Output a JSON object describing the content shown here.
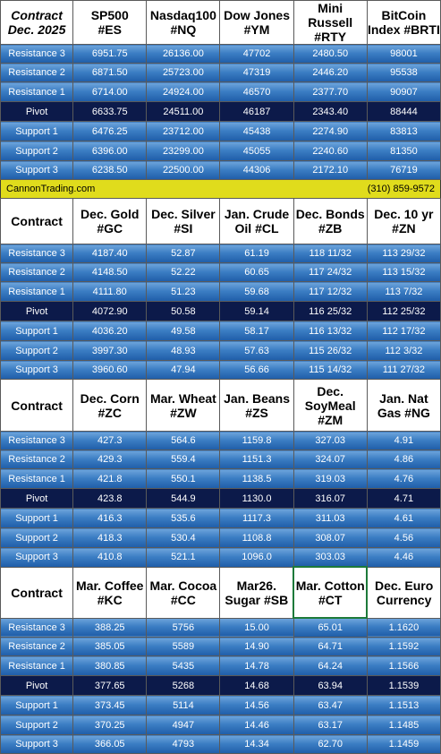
{
  "sections": [
    {
      "header": {
        "corner": "Contract\nDec. 2025",
        "columns": [
          "SP500\n#ES",
          "Nasdaq100\n#NQ",
          "Dow Jones\n#YM",
          "Mini Russell\n#RTY",
          "BitCoin\nIndex #BRTI"
        ]
      },
      "rows": [
        {
          "label": "Resistance 3",
          "values": [
            "6951.75",
            "26136.00",
            "47702",
            "2480.50",
            "98001"
          ]
        },
        {
          "label": "Resistance 2",
          "values": [
            "6871.50",
            "25723.00",
            "47319",
            "2446.20",
            "95538"
          ]
        },
        {
          "label": "Resistance 1",
          "values": [
            "6714.00",
            "24924.00",
            "46570",
            "2377.70",
            "90907"
          ]
        },
        {
          "label": "Pivot",
          "values": [
            "6633.75",
            "24511.00",
            "46187",
            "2343.40",
            "88444"
          ]
        },
        {
          "label": "Support 1",
          "values": [
            "6476.25",
            "23712.00",
            "45438",
            "2274.90",
            "83813"
          ]
        },
        {
          "label": "Support 2",
          "values": [
            "6396.00",
            "23299.00",
            "45055",
            "2240.60",
            "81350"
          ]
        },
        {
          "label": "Support 3",
          "values": [
            "6238.50",
            "22500.00",
            "44306",
            "2172.10",
            "76719"
          ]
        }
      ]
    },
    {
      "header": {
        "corner": "Contract",
        "columns": [
          "Dec. Gold\n#GC",
          "Dec. Silver\n#SI",
          "Jan. Crude\nOil #CL",
          "Dec. Bonds\n#ZB",
          "Dec. 10 yr\n#ZN"
        ]
      },
      "rows": [
        {
          "label": "Resistance 3",
          "values": [
            "4187.40",
            "52.87",
            "61.19",
            "118 11/32",
            "113 29/32"
          ]
        },
        {
          "label": "Resistance 2",
          "values": [
            "4148.50",
            "52.22",
            "60.65",
            "117 24/32",
            "113 15/32"
          ]
        },
        {
          "label": "Resistance 1",
          "values": [
            "4111.80",
            "51.23",
            "59.68",
            "117 12/32",
            "113  7/32"
          ]
        },
        {
          "label": "Pivot",
          "values": [
            "4072.90",
            "50.58",
            "59.14",
            "116 25/32",
            "112 25/32"
          ]
        },
        {
          "label": "Support 1",
          "values": [
            "4036.20",
            "49.58",
            "58.17",
            "116 13/32",
            "112 17/32"
          ]
        },
        {
          "label": "Support 2",
          "values": [
            "3997.30",
            "48.93",
            "57.63",
            "115 26/32",
            "112  3/32"
          ]
        },
        {
          "label": "Support 3",
          "values": [
            "3960.60",
            "47.94",
            "56.66",
            "115 14/32",
            "111 27/32"
          ]
        }
      ]
    },
    {
      "header": {
        "corner": "Contract",
        "columns": [
          "Dec. Corn\n#ZC",
          "Mar.  Wheat\n#ZW",
          "Jan. Beans\n#ZS",
          "Dec.\nSoyMeal\n#ZM",
          "Jan. Nat\nGas #NG"
        ]
      },
      "rows": [
        {
          "label": "Resistance 3",
          "values": [
            "427.3",
            "564.6",
            "1159.8",
            "327.03",
            "4.91"
          ]
        },
        {
          "label": "Resistance 2",
          "values": [
            "429.3",
            "559.4",
            "1151.3",
            "324.07",
            "4.86"
          ]
        },
        {
          "label": "Resistance 1",
          "values": [
            "421.8",
            "550.1",
            "1138.5",
            "319.03",
            "4.76"
          ]
        },
        {
          "label": "Pivot",
          "values": [
            "423.8",
            "544.9",
            "1130.0",
            "316.07",
            "4.71"
          ]
        },
        {
          "label": "Support 1",
          "values": [
            "416.3",
            "535.6",
            "1117.3",
            "311.03",
            "4.61"
          ]
        },
        {
          "label": "Support 2",
          "values": [
            "418.3",
            "530.4",
            "1108.8",
            "308.07",
            "4.56"
          ]
        },
        {
          "label": "Support 3",
          "values": [
            "410.8",
            "521.1",
            "1096.0",
            "303.03",
            "4.46"
          ]
        }
      ]
    },
    {
      "header": {
        "corner": "Contract",
        "columns": [
          "Mar. Coffee\n#KC",
          "Mar. Cocoa\n#CC",
          "Mar26.\nSugar #SB",
          "Mar. Cotton\n#CT",
          "Dec. Euro\nCurrency"
        ]
      },
      "rows": [
        {
          "label": "Resistance 3",
          "values": [
            "388.25",
            "5756",
            "15.00",
            "65.01",
            "1.1620"
          ]
        },
        {
          "label": "Resistance 2",
          "values": [
            "385.05",
            "5589",
            "14.90",
            "64.71",
            "1.1592"
          ]
        },
        {
          "label": "Resistance 1",
          "values": [
            "380.85",
            "5435",
            "14.78",
            "64.24",
            "1.1566"
          ]
        },
        {
          "label": "Pivot",
          "values": [
            "377.65",
            "5268",
            "14.68",
            "63.94",
            "1.1539"
          ]
        },
        {
          "label": "Support 1",
          "values": [
            "373.45",
            "5114",
            "14.56",
            "63.47",
            "1.1513"
          ]
        },
        {
          "label": "Support 2",
          "values": [
            "370.25",
            "4947",
            "14.46",
            "63.17",
            "1.1485"
          ]
        },
        {
          "label": "Support 3",
          "values": [
            "366.05",
            "4793",
            "14.34",
            "62.70",
            "1.1459"
          ]
        }
      ]
    }
  ],
  "banner": {
    "site": "CannonTrading.com",
    "phone": "(310) 859-9572"
  },
  "colors": {
    "row_top": "#6ea5dc",
    "row_bottom": "#1f5da8",
    "pivot": "#0c1a4a",
    "banner": "#e0dc1c",
    "highlight_border": "#1d7a3a"
  }
}
